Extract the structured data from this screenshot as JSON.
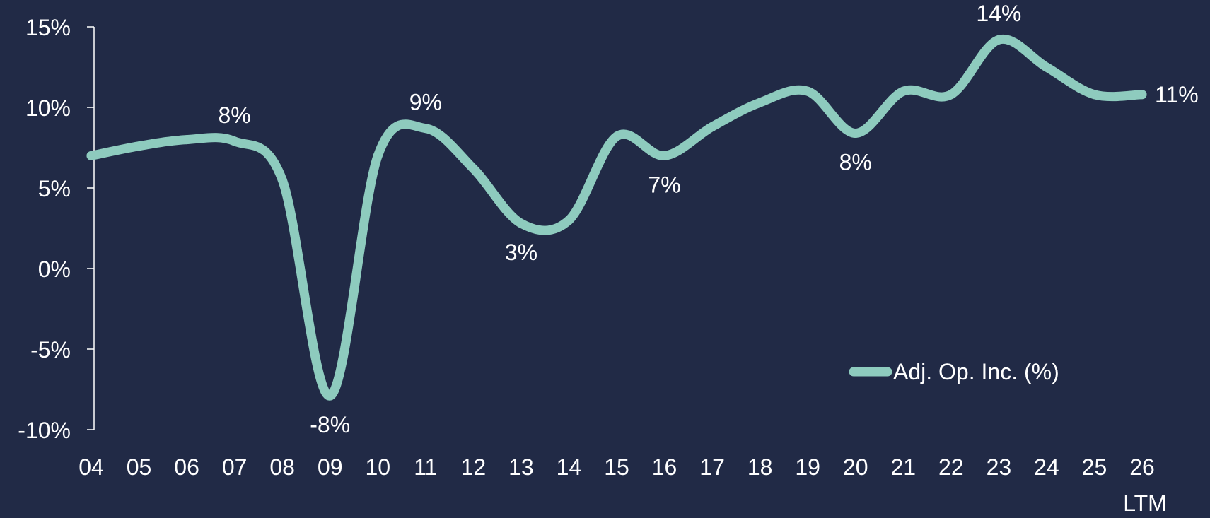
{
  "colors": {
    "background": "#212a46",
    "line": "#8ecbbe",
    "text": "#ffffff",
    "axis": "#ffffff"
  },
  "chart_data": {
    "type": "line",
    "title": "",
    "xlabel": "",
    "ylabel": "",
    "categories": [
      "04",
      "05",
      "06",
      "07",
      "08",
      "09",
      "10",
      "11",
      "12",
      "13",
      "14",
      "15",
      "16",
      "17",
      "18",
      "19",
      "20",
      "21",
      "22",
      "23",
      "24",
      "25",
      "26"
    ],
    "category_sublabels": {
      "26": "LTM"
    },
    "ylim": [
      -10,
      15
    ],
    "yticks": [
      -10,
      -5,
      0,
      5,
      10,
      15
    ],
    "ytick_labels": [
      "-10%",
      "-5%",
      "0%",
      "5%",
      "10%",
      "15%"
    ],
    "grid": false,
    "legend": {
      "position": "bottom-right"
    },
    "series": [
      {
        "name": "Adj. Op. Inc. (%)",
        "values": [
          7.0,
          7.6,
          8.0,
          7.9,
          5.5,
          -7.9,
          7.0,
          8.7,
          6.2,
          2.8,
          3.0,
          8.2,
          7.0,
          8.8,
          10.3,
          11.0,
          8.4,
          11.0,
          10.8,
          14.2,
          12.5,
          10.8,
          10.8
        ]
      }
    ],
    "data_labels": [
      {
        "category": "07",
        "text": "8%",
        "placement": "above"
      },
      {
        "category": "09",
        "text": "-8%",
        "placement": "below"
      },
      {
        "category": "11",
        "text": "9%",
        "placement": "above"
      },
      {
        "category": "13",
        "text": "3%",
        "placement": "below"
      },
      {
        "category": "16",
        "text": "7%",
        "placement": "below"
      },
      {
        "category": "20",
        "text": "8%",
        "placement": "below"
      },
      {
        "category": "23",
        "text": "14%",
        "placement": "above"
      },
      {
        "category": "26",
        "text": "11%",
        "placement": "right"
      }
    ]
  }
}
